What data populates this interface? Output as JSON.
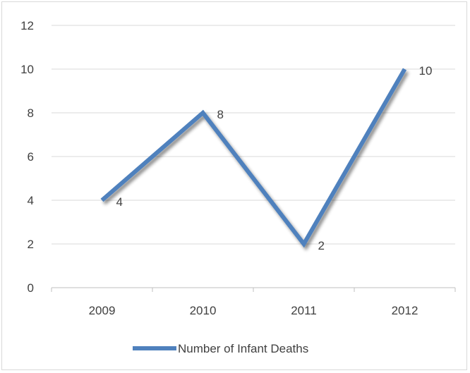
{
  "chart_data": {
    "type": "line",
    "categories": [
      "2009",
      "2010",
      "2011",
      "2012"
    ],
    "series": [
      {
        "name": "Number of Infant Deaths",
        "values": [
          4,
          8,
          2,
          10
        ],
        "color": "#4f81bd"
      }
    ],
    "ylim": [
      0,
      12
    ],
    "yticks": [
      0,
      2,
      4,
      6,
      8,
      10,
      12
    ],
    "grid": true,
    "legend": "bottom",
    "data_labels": true
  }
}
